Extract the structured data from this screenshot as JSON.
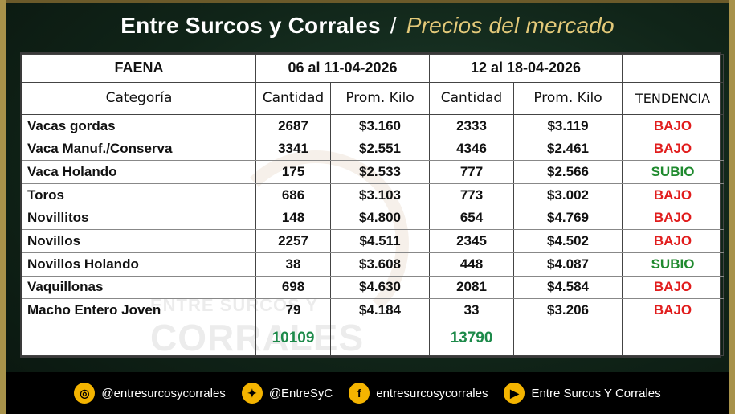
{
  "title": {
    "main": "Entre Surcos y Corrales",
    "separator": "/",
    "subtitle": "Precios del mercado"
  },
  "table": {
    "faena_label": "FAENA",
    "period1": "06 al 11-04-2026",
    "period2": "12 al 18-04-2026",
    "col_categoria": "Categoría",
    "col_cantidad": "Cantidad",
    "col_prom_kilo": "Prom. Kilo",
    "col_tendencia": "TENDENCIA",
    "rows": [
      {
        "cat": "Vacas gordas",
        "c1": "2687",
        "p1": "$3.160",
        "c2": "2333",
        "p2": "$3.119",
        "trend": "BAJO"
      },
      {
        "cat": "Vaca Manuf./Conserva",
        "c1": "3341",
        "p1": "$2.551",
        "c2": "4346",
        "p2": "$2.461",
        "trend": "BAJO"
      },
      {
        "cat": "Vaca Holando",
        "c1": "175",
        "p1": "$2.533",
        "c2": "777",
        "p2": "$2.566",
        "trend": "SUBIO"
      },
      {
        "cat": "Toros",
        "c1": "686",
        "p1": "$3.103",
        "c2": "773",
        "p2": "$3.002",
        "trend": "BAJO"
      },
      {
        "cat": "Novillitos",
        "c1": "148",
        "p1": "$4.800",
        "c2": "654",
        "p2": "$4.769",
        "trend": "BAJO"
      },
      {
        "cat": "Novillos",
        "c1": "2257",
        "p1": "$4.511",
        "c2": "2345",
        "p2": "$4.502",
        "trend": "BAJO"
      },
      {
        "cat": "Novillos Holando",
        "c1": "38",
        "p1": "$3.608",
        "c2": "448",
        "p2": "$4.087",
        "trend": "SUBIO"
      },
      {
        "cat": "Vaquillonas",
        "c1": "698",
        "p1": "$4.630",
        "c2": "2081",
        "p2": "$4.584",
        "trend": "BAJO"
      },
      {
        "cat": "Macho Entero Joven",
        "c1": "79",
        "p1": "$4.184",
        "c2": "33",
        "p2": "$3.206",
        "trend": "BAJO"
      }
    ],
    "total1": "10109",
    "total2": "13790"
  },
  "watermark": {
    "line1": "ENTRE SURCOS Y",
    "line2": "CORRALES"
  },
  "footer": {
    "instagram": "@entresurcosycorrales",
    "twitter": "@EntreSyC",
    "facebook": "entresurcosycorrales",
    "youtube": "Entre Surcos Y Corrales"
  },
  "colors": {
    "bajo": "#e11d1d",
    "subio": "#1f8a2e",
    "total": "#1d8a4a",
    "accent": "#f4b400"
  }
}
